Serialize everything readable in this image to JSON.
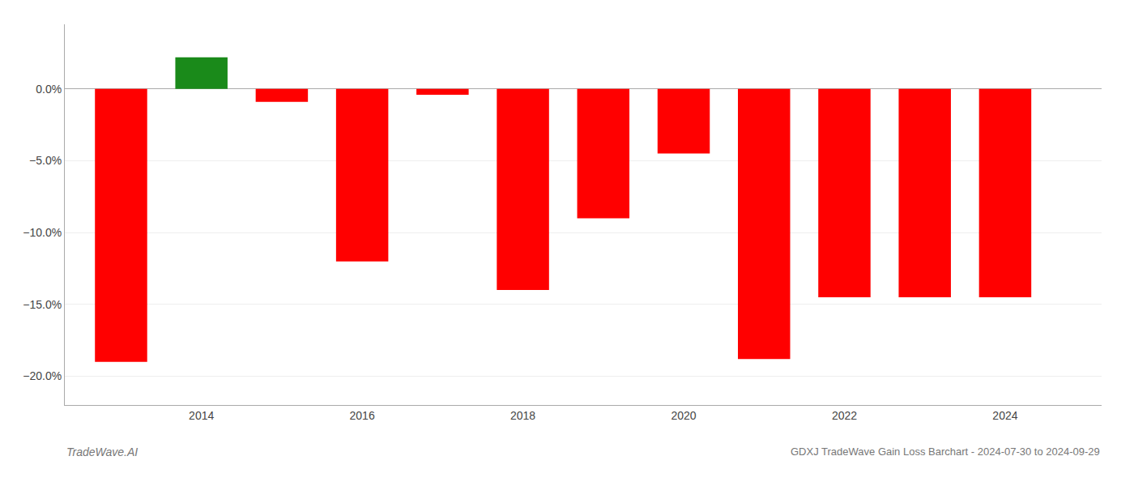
{
  "chart_data": {
    "type": "bar",
    "title": "GDXJ TradeWave Gain Loss Barchart - 2024-07-30 to 2024-09-29",
    "annotations": [
      "TradeWave.AI"
    ],
    "x": [
      2013,
      2014,
      2015,
      2016,
      2017,
      2018,
      2019,
      2020,
      2021,
      2022,
      2023,
      2024
    ],
    "values": [
      -19.0,
      2.2,
      -0.9,
      -12.0,
      -0.4,
      -14.0,
      -9.0,
      -4.5,
      -18.8,
      -14.5,
      -14.5,
      -14.5
    ],
    "colors": [
      "#ff0000",
      "#1a8a1a",
      "#ff0000",
      "#ff0000",
      "#ff0000",
      "#ff0000",
      "#ff0000",
      "#ff0000",
      "#ff0000",
      "#ff0000",
      "#ff0000",
      "#ff0000"
    ],
    "xlim": [
      2012.3,
      2025.2
    ],
    "xticks": [
      2014,
      2016,
      2018,
      2020,
      2022,
      2024
    ],
    "ylim": [
      -22.0,
      4.5
    ],
    "yticks": [
      {
        "value": 0.0,
        "label": "0.0%"
      },
      {
        "value": -5.0,
        "label": "−5.0%"
      },
      {
        "value": -10.0,
        "label": "−10.0%"
      },
      {
        "value": -15.0,
        "label": "−15.0%"
      },
      {
        "value": -20.0,
        "label": "−20.0%"
      }
    ],
    "grid": true
  }
}
